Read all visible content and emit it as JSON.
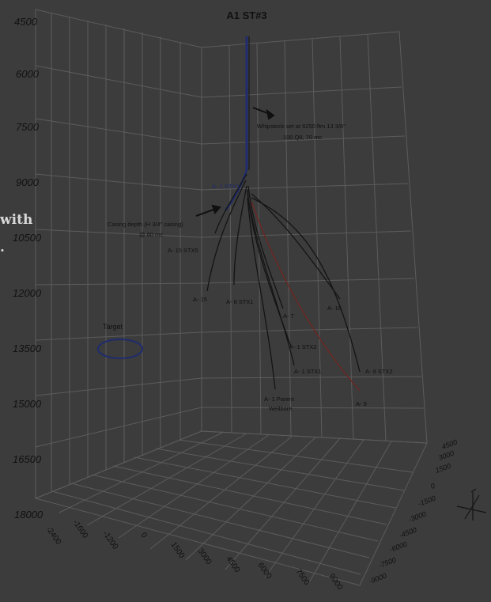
{
  "title": "A1 ST#3",
  "side_text": [
    "with",
    "."
  ],
  "depth_axis": {
    "ticks": [
      "4500",
      "6000",
      "7500",
      "9000",
      "10500",
      "12000",
      "13500",
      "15000",
      "16500",
      "18000"
    ]
  },
  "front_axis": {
    "ticks": [
      "-2400",
      "-1600",
      "-1200",
      "0",
      "1500",
      "3000",
      "4500",
      "6000",
      "7500",
      "9000"
    ]
  },
  "right_axis": {
    "ticks": [
      "4500",
      "3000",
      "1500",
      "0",
      "-1500",
      "-3000",
      "-4500",
      "-6000",
      "-7500",
      "-9000"
    ]
  },
  "annotations": {
    "whipstock_line1": "Whipstock set at 6250 ftm 13 3/8\"",
    "whipstock_line2": "100 Q8, 70 mc",
    "casing_line1": "Casing depth (H 3/4\" casing)",
    "casing_line2": "@ 60 mc",
    "target": "Target"
  },
  "well_labels": {
    "a1_stx3": "A- 1 STX3",
    "a15_stx5": "A- 15 STX5",
    "a15": "A- 15",
    "a8_stx1": "A- 8 STX1",
    "a7": "A- 7",
    "a16": "A- 16",
    "a1_stx2": "A- 1 STX2",
    "a1_stx1": "A- 1 STX1",
    "a9_stx2": "A- 9 STX2",
    "parent_line1": "A- 1 Parent",
    "parent_line2": "Wellbore",
    "a9": "A- 9"
  },
  "colors": {
    "background": "#3c3c3c",
    "grid": "#5a5a5a",
    "well_dark": "#141414",
    "well_blue": "#1e2b6e",
    "well_red": "#6e2520",
    "target": "#1e2b6e",
    "text": "#101010"
  }
}
